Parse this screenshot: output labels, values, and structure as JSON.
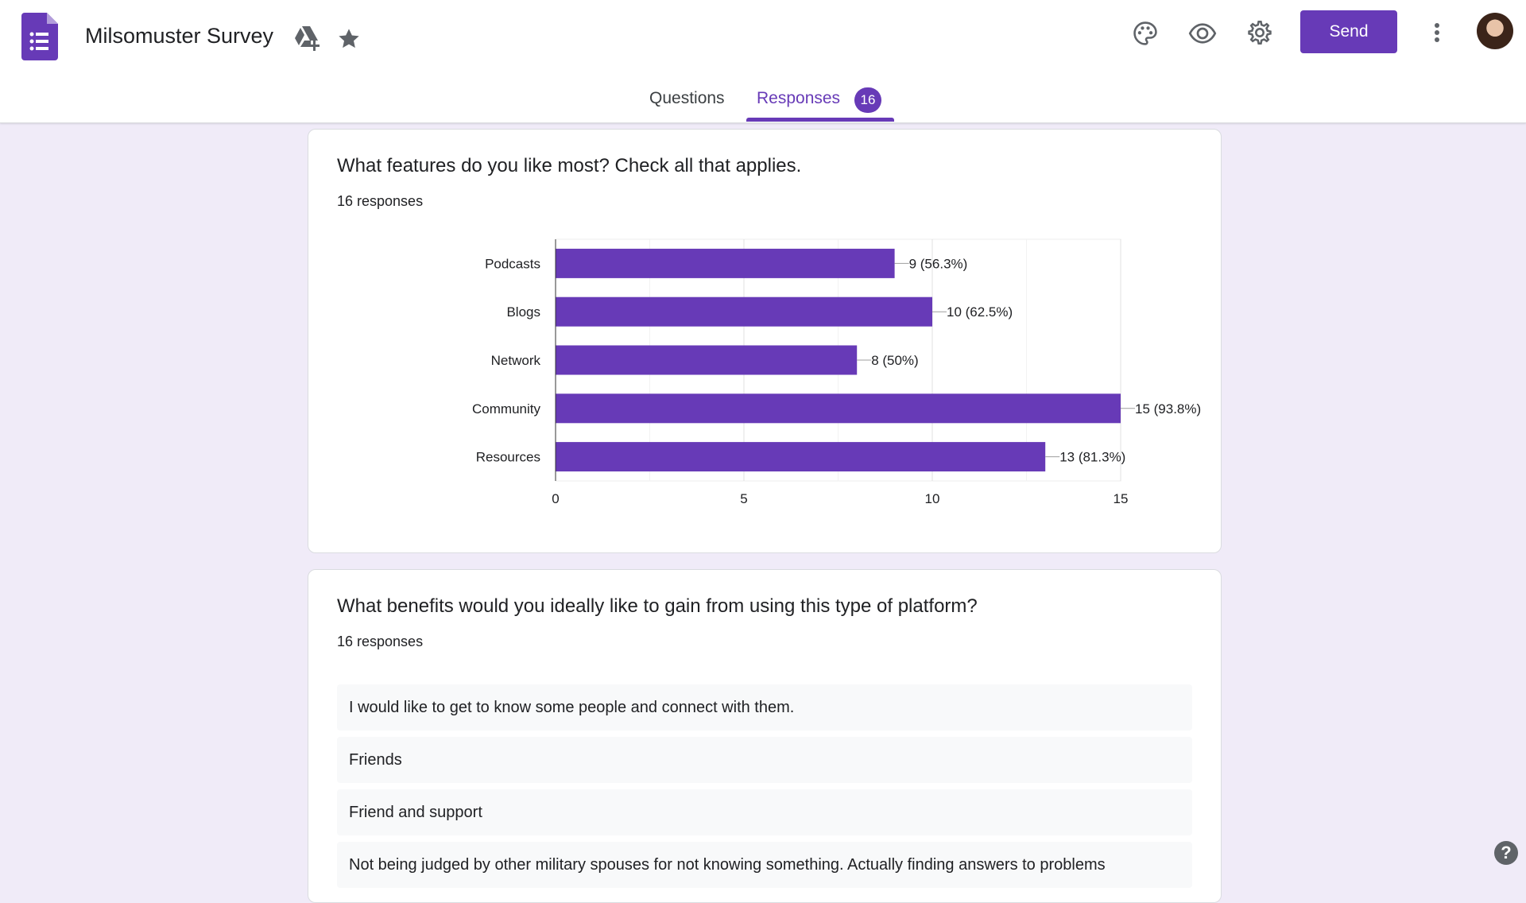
{
  "header": {
    "title": "Milsomuster Survey",
    "send_label": "Send",
    "icons": [
      "forms-logo-icon",
      "add-to-drive-icon",
      "star-icon",
      "palette-icon",
      "eye-icon",
      "gear-icon",
      "more-vert-icon"
    ],
    "tabs": {
      "questions": "Questions",
      "responses": "Responses",
      "responses_count": "16"
    }
  },
  "accent_color": "#673ab7",
  "background_color": "#f0ebf8",
  "questions": [
    {
      "title": "What features do you like most? Check all that applies.",
      "responses": "16 responses"
    },
    {
      "title": "What benefits would you ideally like to gain from using this type of platform?",
      "responses": "16 responses",
      "answers": [
        "I would like to get to know some people and connect with them.",
        "Friends",
        "Friend and support",
        "Not being judged by other military spouses for not knowing something. Actually finding answers to problems"
      ]
    }
  ],
  "chart_data": {
    "type": "bar",
    "orientation": "horizontal",
    "categories": [
      "Podcasts",
      "Blogs",
      "Network",
      "Community",
      "Resources"
    ],
    "values": [
      9,
      10,
      8,
      15,
      13
    ],
    "data_labels": [
      "9 (56.3%)",
      "10 (62.5%)",
      "8 (50%)",
      "15 (93.8%)",
      "13 (81.3%)"
    ],
    "xlim": [
      0,
      15
    ],
    "xticks": [
      0,
      5,
      10,
      15
    ],
    "grid": true,
    "bar_color": "#673ab7"
  }
}
